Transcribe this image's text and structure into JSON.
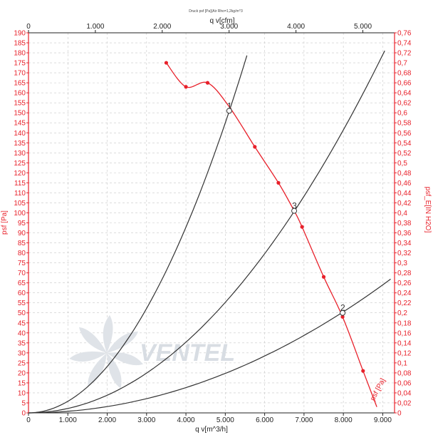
{
  "chart_data": {
    "type": "line",
    "title": "Druck psf [Pa](Air Rho=1,2kg/m^3",
    "xlabel": "q v[m^3/h]",
    "x2label": "q v[cfm]",
    "ylabel": "psf [Pa]",
    "y2label": "psf_E[IN H2O]",
    "xlim": [
      0,
      9300
    ],
    "ylim": [
      0,
      190
    ],
    "x_ticks": [
      "0",
      "1.000",
      "2.000",
      "3.000",
      "4.000",
      "5.000",
      "6.000",
      "7.000",
      "8.000",
      "9.000"
    ],
    "x_tick_values": [
      0,
      1000,
      2000,
      3000,
      4000,
      5000,
      6000,
      7000,
      8000,
      9000
    ],
    "cfm_ticks": [
      "0",
      "1.000",
      "2.000",
      "3.000",
      "4.000",
      "5.000"
    ],
    "cfm_tick_values": [
      0,
      1000,
      2000,
      3000,
      4000,
      5000
    ],
    "y_ticks": [
      0,
      5,
      10,
      15,
      20,
      25,
      30,
      35,
      40,
      45,
      50,
      55,
      60,
      65,
      70,
      75,
      80,
      85,
      90,
      95,
      100,
      105,
      110,
      115,
      120,
      125,
      130,
      135,
      140,
      145,
      150,
      155,
      160,
      165,
      170,
      175,
      180,
      185,
      190
    ],
    "y2_ticks": [
      "0",
      "0,02",
      "0,04",
      "0,06",
      "0,08",
      "0,1",
      "0,12",
      "0,14",
      "0,16",
      "0,18",
      "0,2",
      "0,22",
      "0,24",
      "0,26",
      "0,28",
      "0,3",
      "0,32",
      "0,34",
      "0,36",
      "0,38",
      "0,4",
      "0,42",
      "0,44",
      "0,46",
      "0,48",
      "0,5",
      "0,52",
      "0,54",
      "0,56",
      "0,58",
      "0,6",
      "0,62",
      "0,64",
      "0,66",
      "0,68",
      "0,7",
      "0,72",
      "0,74",
      "0,76"
    ],
    "y2_tick_values": [
      0,
      0.02,
      0.04,
      0.06,
      0.08,
      0.1,
      0.12,
      0.14,
      0.16,
      0.18,
      0.2,
      0.22,
      0.24,
      0.26,
      0.28,
      0.3,
      0.32,
      0.34,
      0.36,
      0.38,
      0.4,
      0.42,
      0.44,
      0.46,
      0.48,
      0.5,
      0.52,
      0.54,
      0.56,
      0.58,
      0.6,
      0.62,
      0.64,
      0.66,
      0.68,
      0.7,
      0.72,
      0.74,
      0.76
    ],
    "y2_per_pa": 0.004,
    "grid": true,
    "fan_curve": {
      "name": "psf [Pa]",
      "color": "#e8202a",
      "points": [
        {
          "x": 3500,
          "y": 175
        },
        {
          "x": 4000,
          "y": 163
        },
        {
          "x": 4550,
          "y": 165
        },
        {
          "x": 5100,
          "y": 153
        },
        {
          "x": 5750,
          "y": 133
        },
        {
          "x": 6350,
          "y": 115
        },
        {
          "x": 6750,
          "y": 101
        },
        {
          "x": 6950,
          "y": 93
        },
        {
          "x": 7500,
          "y": 68
        },
        {
          "x": 7980,
          "y": 48
        },
        {
          "x": 8500,
          "y": 21
        },
        {
          "x": 8850,
          "y": 3
        }
      ],
      "markers_at": [
        0,
        1,
        2,
        4,
        5,
        7,
        8,
        9,
        10
      ]
    },
    "system_curves": [
      {
        "label": "1",
        "k": 5.8e-06,
        "x_end": 5550,
        "color": "#333333"
      },
      {
        "label": "3",
        "k": 2.21e-06,
        "x_end": 9050,
        "color": "#333333"
      },
      {
        "label": "2",
        "k": 7.9e-07,
        "x_end": 9200,
        "color": "#333333"
      }
    ],
    "operating_points": [
      {
        "label": "1",
        "x": 5100,
        "y": 151
      },
      {
        "label": "3",
        "x": 6750,
        "y": 101
      },
      {
        "label": "2",
        "x": 7980,
        "y": 50
      }
    ],
    "watermark": "VENTEL"
  }
}
